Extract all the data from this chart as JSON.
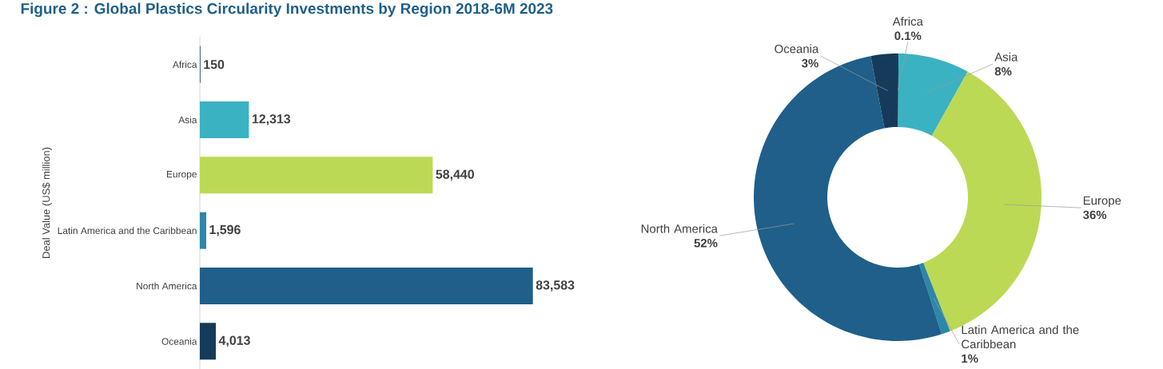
{
  "chart_data": [
    {
      "type": "bar",
      "orientation": "horizontal",
      "title": "Figure 2 : Global Plastics Circularity Investments by Region 2018-6M 2023",
      "ylabel": "Deal Value (US$ million)",
      "categories": [
        "Africa",
        "Asia",
        "Europe",
        "Latin America and the Caribbean",
        "North America",
        "Oceania"
      ],
      "values": [
        150,
        12313,
        58440,
        1596,
        83583,
        4013
      ],
      "value_labels": [
        "150",
        "12,313",
        "58,440",
        "1,596",
        "83,583",
        "4,013"
      ],
      "colors": [
        "#1a3f5f",
        "#3ab2c2",
        "#bcd955",
        "#2c87a8",
        "#1f5f8a",
        "#163b5a"
      ]
    },
    {
      "type": "donut",
      "categories": [
        "Africa",
        "Asia",
        "Europe",
        "Latin America and the Caribbean",
        "North America",
        "Oceania"
      ],
      "values": [
        0.1,
        8,
        36,
        1,
        52,
        3
      ],
      "value_labels": [
        "0.1%",
        "8%",
        "36%",
        "1%",
        "52%",
        "3%"
      ],
      "colors": [
        "#1a3f5f",
        "#3ab2c2",
        "#bcd955",
        "#2c87a8",
        "#1f5f8a",
        "#163b5a"
      ]
    }
  ]
}
